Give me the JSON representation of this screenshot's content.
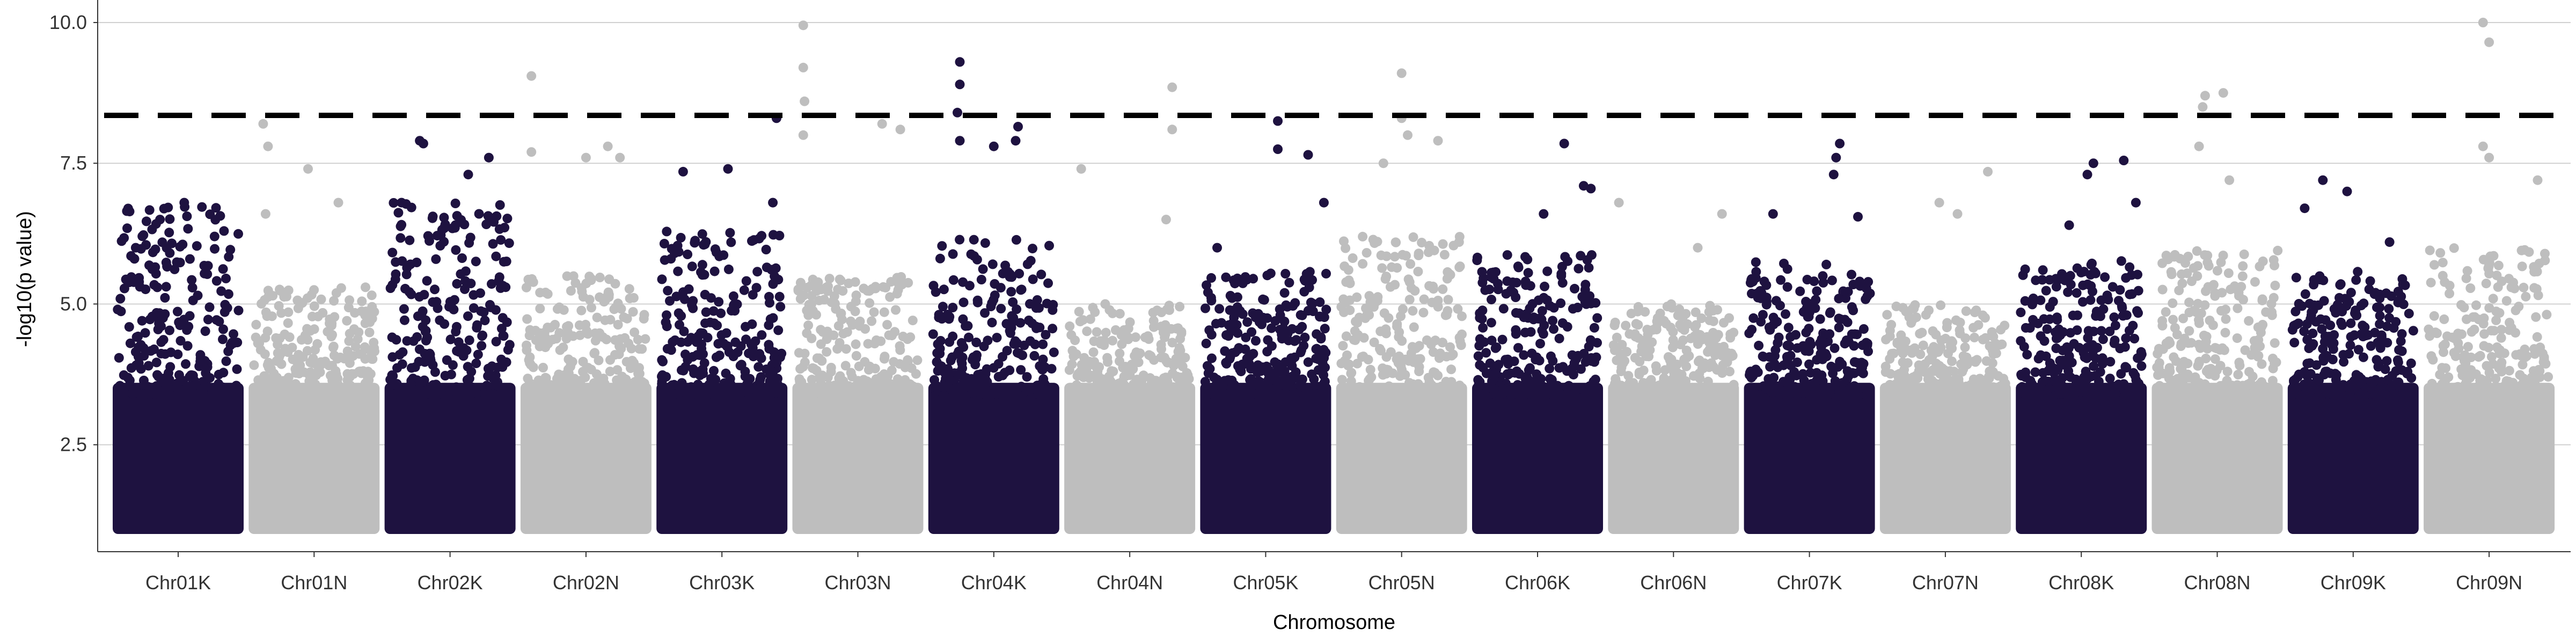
{
  "chart_data": {
    "type": "scatter",
    "subtype": "manhattan",
    "title": "",
    "xlabel": "Chromosome",
    "ylabel": "-log10(p value)",
    "ylim": [
      0.6,
      10.4
    ],
    "yticks": [
      2.5,
      5.0,
      7.5,
      10.0
    ],
    "ytick_labels": [
      "2.5",
      "5.0",
      "7.5",
      "10.0"
    ],
    "grid": "horizontal major lines",
    "legend": "none",
    "colors": {
      "dark": "#1e1240",
      "light": "#bebebe",
      "grid": "#d0d0d0",
      "threshold": "#000000"
    },
    "threshold": 8.35,
    "threshold_style": "dashed",
    "categories": [
      "Chr01K",
      "Chr01N",
      "Chr02K",
      "Chr02N",
      "Chr03K",
      "Chr03N",
      "Chr04K",
      "Chr04N",
      "Chr05K",
      "Chr05N",
      "Chr06K",
      "Chr06N",
      "Chr07K",
      "Chr07N",
      "Chr08K",
      "Chr08N",
      "Chr09K",
      "Chr09N"
    ],
    "series": [
      {
        "name": "Chr01K",
        "color": "dark",
        "y_range": [
          1.0,
          6.8
        ],
        "top_points": [
          [
            0.55,
            6.8
          ],
          [
            0.35,
            6.5
          ],
          [
            0.8,
            6.2
          ],
          [
            0.15,
            6.0
          ]
        ]
      },
      {
        "name": "Chr01N",
        "color": "light",
        "y_range": [
          1.0,
          5.3
        ],
        "top_points": [
          [
            0.08,
            8.2
          ],
          [
            0.12,
            7.8
          ],
          [
            0.45,
            7.4
          ],
          [
            0.7,
            6.8
          ],
          [
            0.1,
            6.6
          ]
        ]
      },
      {
        "name": "Chr02K",
        "color": "dark",
        "y_range": [
          1.0,
          6.8
        ],
        "top_points": [
          [
            0.25,
            7.9
          ],
          [
            0.28,
            7.85
          ],
          [
            0.82,
            7.6
          ],
          [
            0.65,
            7.3
          ],
          [
            0.1,
            6.8
          ]
        ]
      },
      {
        "name": "Chr02N",
        "color": "light",
        "y_range": [
          1.0,
          5.5
        ],
        "top_points": [
          [
            0.05,
            9.05
          ],
          [
            0.05,
            7.7
          ],
          [
            0.5,
            7.6
          ],
          [
            0.68,
            7.8
          ],
          [
            0.78,
            7.6
          ]
        ]
      },
      {
        "name": "Chr03K",
        "color": "dark",
        "y_range": [
          1.0,
          6.3
        ],
        "top_points": [
          [
            0.18,
            7.35
          ],
          [
            0.55,
            7.4
          ],
          [
            0.95,
            8.3
          ],
          [
            0.92,
            6.8
          ]
        ]
      },
      {
        "name": "Chr03N",
        "color": "light",
        "y_range": [
          1.0,
          5.5
        ],
        "top_points": [
          [
            0.05,
            9.95
          ],
          [
            0.05,
            9.2
          ],
          [
            0.06,
            8.6
          ],
          [
            0.05,
            8.0
          ],
          [
            0.7,
            8.2
          ],
          [
            0.85,
            8.1
          ]
        ]
      },
      {
        "name": "Chr04K",
        "color": "dark",
        "y_range": [
          1.0,
          6.2
        ],
        "top_points": [
          [
            0.22,
            9.3
          ],
          [
            0.22,
            8.9
          ],
          [
            0.2,
            8.4
          ],
          [
            0.22,
            7.9
          ],
          [
            0.7,
            8.15
          ],
          [
            0.68,
            7.9
          ],
          [
            0.5,
            7.8
          ]
        ]
      },
      {
        "name": "Chr04N",
        "color": "light",
        "y_range": [
          1.0,
          5.0
        ],
        "top_points": [
          [
            0.85,
            8.85
          ],
          [
            0.85,
            8.1
          ],
          [
            0.1,
            7.4
          ],
          [
            0.8,
            6.5
          ]
        ]
      },
      {
        "name": "Chr05K",
        "color": "dark",
        "y_range": [
          1.0,
          5.6
        ],
        "top_points": [
          [
            0.6,
            8.25
          ],
          [
            0.6,
            7.75
          ],
          [
            0.85,
            7.65
          ],
          [
            0.98,
            6.8
          ],
          [
            0.1,
            6.0
          ]
        ]
      },
      {
        "name": "Chr05N",
        "color": "light",
        "y_range": [
          1.0,
          6.2
        ],
        "top_points": [
          [
            0.5,
            9.1
          ],
          [
            0.5,
            8.3
          ],
          [
            0.55,
            8.0
          ],
          [
            0.8,
            7.9
          ],
          [
            0.35,
            7.5
          ]
        ]
      },
      {
        "name": "Chr06K",
        "color": "dark",
        "y_range": [
          1.0,
          5.9
        ],
        "top_points": [
          [
            0.72,
            7.85
          ],
          [
            0.88,
            7.1
          ],
          [
            0.94,
            7.05
          ],
          [
            0.55,
            6.6
          ]
        ]
      },
      {
        "name": "Chr06N",
        "color": "light",
        "y_range": [
          1.0,
          5.0
        ],
        "top_points": [
          [
            0.05,
            6.8
          ],
          [
            0.9,
            6.6
          ],
          [
            0.7,
            6.0
          ]
        ]
      },
      {
        "name": "Chr07K",
        "color": "dark",
        "y_range": [
          1.0,
          5.8
        ],
        "top_points": [
          [
            0.75,
            7.85
          ],
          [
            0.72,
            7.6
          ],
          [
            0.7,
            7.3
          ],
          [
            0.9,
            6.55
          ],
          [
            0.2,
            6.6
          ]
        ]
      },
      {
        "name": "Chr07N",
        "color": "light",
        "y_range": [
          1.0,
          5.0
        ],
        "top_points": [
          [
            0.85,
            7.35
          ],
          [
            0.45,
            6.8
          ],
          [
            0.6,
            6.6
          ]
        ]
      },
      {
        "name": "Chr08K",
        "color": "dark",
        "y_range": [
          1.0,
          5.8
        ],
        "top_points": [
          [
            0.85,
            7.55
          ],
          [
            0.6,
            7.5
          ],
          [
            0.55,
            7.3
          ],
          [
            0.95,
            6.8
          ],
          [
            0.4,
            6.4
          ]
        ]
      },
      {
        "name": "Chr08N",
        "color": "light",
        "y_range": [
          1.0,
          6.0
        ],
        "top_points": [
          [
            0.4,
            8.7
          ],
          [
            0.55,
            8.75
          ],
          [
            0.38,
            8.5
          ],
          [
            0.35,
            7.8
          ],
          [
            0.6,
            7.2
          ]
        ]
      },
      {
        "name": "Chr09K",
        "color": "dark",
        "y_range": [
          1.0,
          5.6
        ],
        "top_points": [
          [
            0.25,
            7.2
          ],
          [
            0.45,
            7.0
          ],
          [
            0.1,
            6.7
          ],
          [
            0.8,
            6.1
          ]
        ]
      },
      {
        "name": "Chr09N",
        "color": "light",
        "y_range": [
          1.0,
          6.0
        ],
        "top_points": [
          [
            0.45,
            10.0
          ],
          [
            0.5,
            9.65
          ],
          [
            0.45,
            7.8
          ],
          [
            0.9,
            7.2
          ],
          [
            0.5,
            7.6
          ]
        ]
      }
    ]
  }
}
